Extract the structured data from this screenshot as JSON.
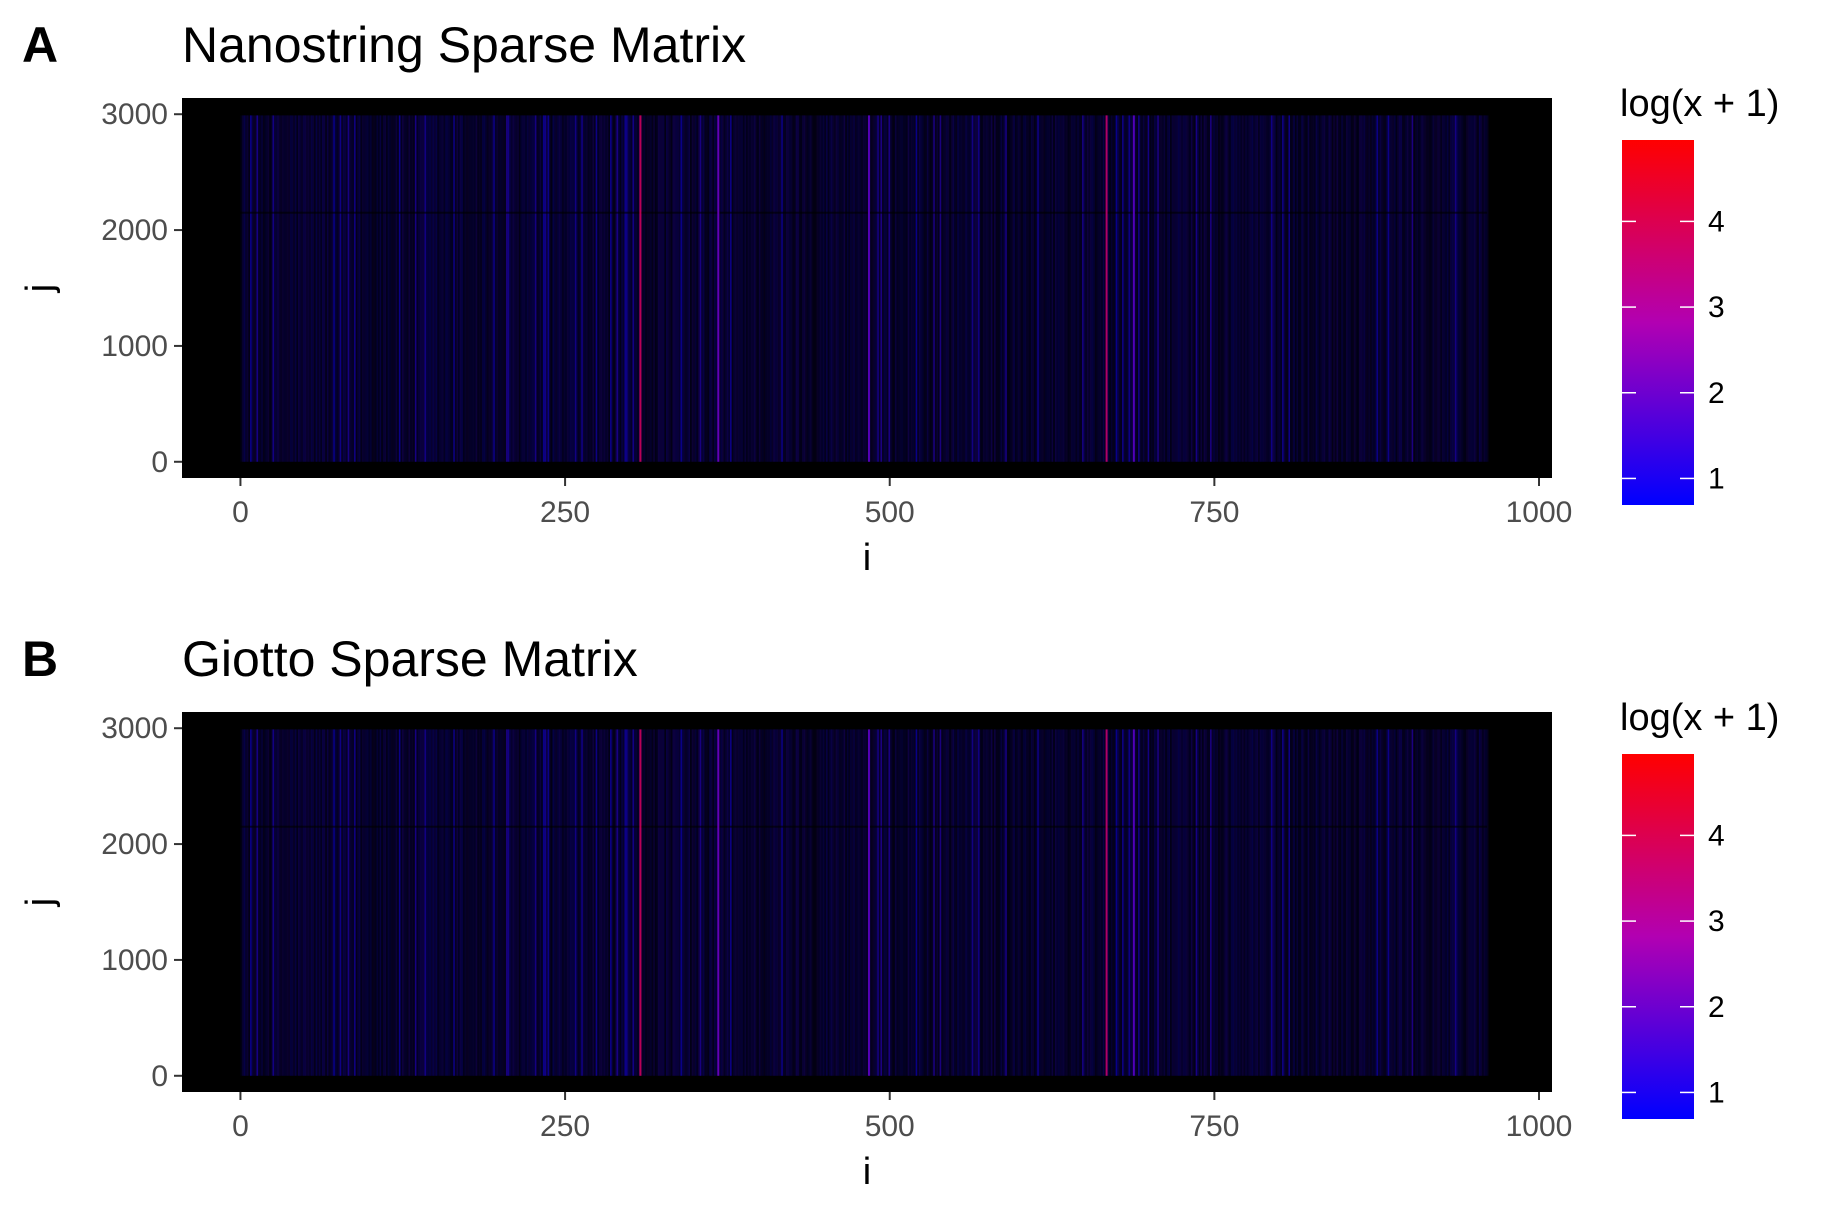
{
  "chart_data": [
    {
      "type": "heatmap",
      "panel_label": "A",
      "title": "Nanostring Sparse Matrix",
      "xlabel": "i",
      "ylabel": "j",
      "x_range": [
        -45,
        1010
      ],
      "y_range": [
        -140,
        3140
      ],
      "x_ticks": [
        "0",
        "250",
        "500",
        "750",
        "1000"
      ],
      "x_tick_values": [
        0,
        250,
        500,
        750,
        1000
      ],
      "y_ticks": [
        "0",
        "1000",
        "2000",
        "3000"
      ],
      "y_tick_values": [
        0,
        1000,
        2000,
        3000
      ],
      "data_extent": {
        "i": [
          0,
          960
        ],
        "j": [
          0,
          2990
        ]
      },
      "background_color": "#000000",
      "color_scale": {
        "title": "log(x + 1)",
        "low_color": "#0000ff",
        "high_color": "#ff0000",
        "range": [
          0.69,
          4.95
        ],
        "ticks": [
          "1",
          "2",
          "3",
          "4"
        ],
        "tick_values": [
          1,
          2,
          3,
          4
        ]
      },
      "bright_columns": [
        {
          "i": 308,
          "value": 3.9
        },
        {
          "i": 368,
          "value": 2.1
        },
        {
          "i": 484,
          "value": 1.9
        },
        {
          "i": 667,
          "value": 3.6
        },
        {
          "i": 688,
          "value": 1.8
        }
      ],
      "dim_row_j": 2150
    },
    {
      "type": "heatmap",
      "panel_label": "B",
      "title": "Giotto Sparse Matrix",
      "xlabel": "i",
      "ylabel": "j",
      "x_range": [
        -45,
        1010
      ],
      "y_range": [
        -140,
        3140
      ],
      "x_ticks": [
        "0",
        "250",
        "500",
        "750",
        "1000"
      ],
      "x_tick_values": [
        0,
        250,
        500,
        750,
        1000
      ],
      "y_ticks": [
        "0",
        "1000",
        "2000",
        "3000"
      ],
      "y_tick_values": [
        0,
        1000,
        2000,
        3000
      ],
      "data_extent": {
        "i": [
          0,
          960
        ],
        "j": [
          0,
          2990
        ]
      },
      "background_color": "#000000",
      "color_scale": {
        "title": "log(x + 1)",
        "low_color": "#0000ff",
        "high_color": "#ff0000",
        "range": [
          0.69,
          4.95
        ],
        "ticks": [
          "1",
          "2",
          "3",
          "4"
        ],
        "tick_values": [
          1,
          2,
          3,
          4
        ]
      },
      "bright_columns": [
        {
          "i": 308,
          "value": 3.9
        },
        {
          "i": 368,
          "value": 2.1
        },
        {
          "i": 484,
          "value": 1.9
        },
        {
          "i": 667,
          "value": 3.6
        },
        {
          "i": 688,
          "value": 1.8
        }
      ],
      "dim_row_j": 2150
    }
  ]
}
